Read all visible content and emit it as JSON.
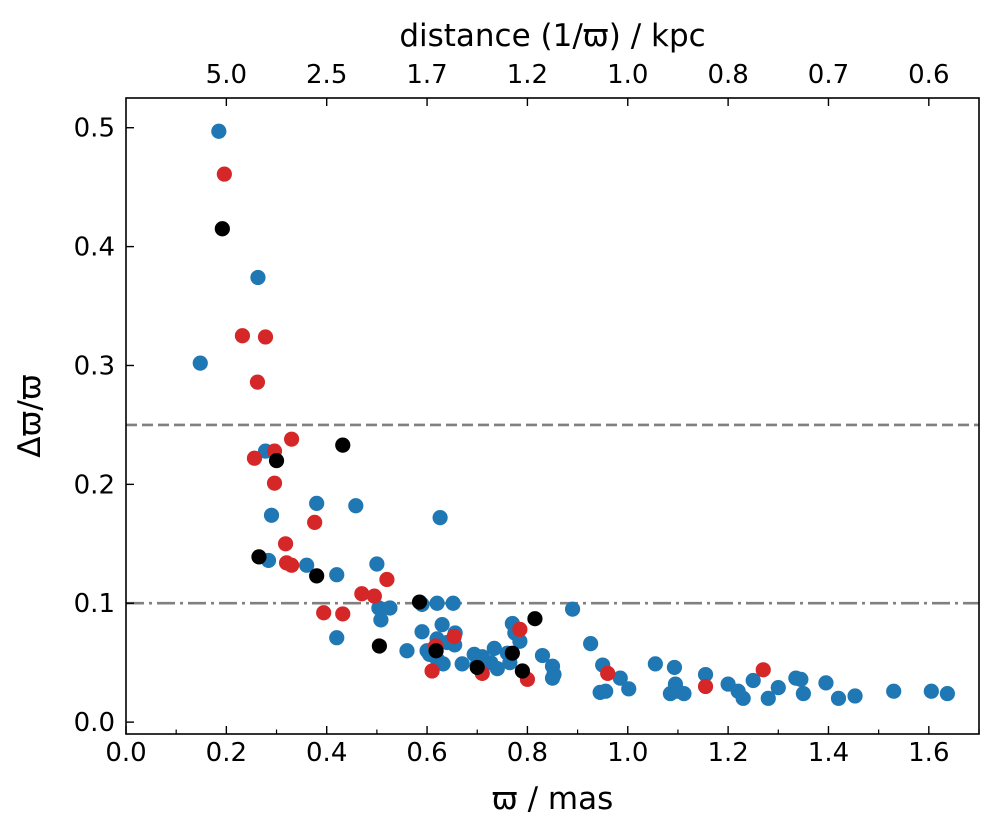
{
  "chart_data": {
    "type": "scatter",
    "title": "",
    "xlabel": "ϖ / mas",
    "ylabel": "Δϖ/ϖ",
    "top_xlabel": "distance (1/ϖ) / kpc",
    "xlim": [
      0.0,
      1.7
    ],
    "ylim": [
      -0.01,
      0.525
    ],
    "x_ticks": [
      0.0,
      0.2,
      0.4,
      0.6,
      0.8,
      1.0,
      1.2,
      1.4,
      1.6
    ],
    "x_tick_labels": [
      "0.0",
      "0.2",
      "0.4",
      "0.6",
      "0.8",
      "1.0",
      "1.2",
      "1.4",
      "1.6"
    ],
    "y_ticks": [
      0.0,
      0.1,
      0.2,
      0.3,
      0.4,
      0.5
    ],
    "y_tick_labels": [
      "0.0",
      "0.1",
      "0.2",
      "0.3",
      "0.4",
      "0.5"
    ],
    "top_ticks": [
      0.2,
      0.4,
      0.6,
      0.8,
      1.0,
      1.2,
      1.4,
      1.6
    ],
    "top_tick_labels": [
      "5.0",
      "2.5",
      "1.7",
      "1.2",
      "1.0",
      "0.8",
      "0.7",
      "0.6"
    ],
    "grid": false,
    "hlines": [
      {
        "y": 0.25,
        "style": "dashed",
        "color": "#808080"
      },
      {
        "y": 0.1,
        "style": "dashdot",
        "color": "#808080"
      }
    ],
    "series": [
      {
        "name": "blue",
        "color": "#1f77b4",
        "points": [
          [
            0.185,
            0.497
          ],
          [
            0.263,
            0.374
          ],
          [
            0.148,
            0.302
          ],
          [
            0.278,
            0.228
          ],
          [
            0.29,
            0.174
          ],
          [
            0.38,
            0.184
          ],
          [
            0.458,
            0.182
          ],
          [
            0.626,
            0.172
          ],
          [
            0.284,
            0.136
          ],
          [
            0.36,
            0.132
          ],
          [
            0.42,
            0.124
          ],
          [
            0.5,
            0.133
          ],
          [
            0.504,
            0.096
          ],
          [
            0.526,
            0.096
          ],
          [
            0.508,
            0.086
          ],
          [
            0.42,
            0.071
          ],
          [
            0.59,
            0.099
          ],
          [
            0.62,
            0.1
          ],
          [
            0.652,
            0.1
          ],
          [
            0.63,
            0.082
          ],
          [
            0.656,
            0.075
          ],
          [
            0.59,
            0.076
          ],
          [
            0.62,
            0.07
          ],
          [
            0.64,
            0.067
          ],
          [
            0.655,
            0.065
          ],
          [
            0.56,
            0.06
          ],
          [
            0.6,
            0.06
          ],
          [
            0.605,
            0.057
          ],
          [
            0.62,
            0.053
          ],
          [
            0.632,
            0.049
          ],
          [
            0.67,
            0.049
          ],
          [
            0.694,
            0.057
          ],
          [
            0.71,
            0.055
          ],
          [
            0.7,
            0.048
          ],
          [
            0.734,
            0.062
          ],
          [
            0.727,
            0.05
          ],
          [
            0.74,
            0.045
          ],
          [
            0.76,
            0.058
          ],
          [
            0.765,
            0.05
          ],
          [
            0.775,
            0.075
          ],
          [
            0.77,
            0.083
          ],
          [
            0.785,
            0.068
          ],
          [
            0.83,
            0.056
          ],
          [
            0.85,
            0.047
          ],
          [
            0.853,
            0.04
          ],
          [
            0.85,
            0.037
          ],
          [
            0.89,
            0.095
          ],
          [
            0.926,
            0.066
          ],
          [
            0.95,
            0.048
          ],
          [
            0.945,
            0.025
          ],
          [
            0.956,
            0.026
          ],
          [
            0.985,
            0.037
          ],
          [
            1.002,
            0.028
          ],
          [
            1.055,
            0.049
          ],
          [
            1.093,
            0.046
          ],
          [
            1.085,
            0.024
          ],
          [
            1.095,
            0.032
          ],
          [
            1.1,
            0.026
          ],
          [
            1.112,
            0.024
          ],
          [
            1.155,
            0.04
          ],
          [
            1.2,
            0.032
          ],
          [
            1.22,
            0.026
          ],
          [
            1.23,
            0.02
          ],
          [
            1.25,
            0.035
          ],
          [
            1.28,
            0.02
          ],
          [
            1.3,
            0.029
          ],
          [
            1.335,
            0.037
          ],
          [
            1.345,
            0.036
          ],
          [
            1.35,
            0.024
          ],
          [
            1.395,
            0.033
          ],
          [
            1.42,
            0.02
          ],
          [
            1.453,
            0.022
          ],
          [
            1.53,
            0.026
          ],
          [
            1.605,
            0.026
          ],
          [
            1.637,
            0.024
          ]
        ]
      },
      {
        "name": "red",
        "color": "#d62728",
        "points": [
          [
            0.196,
            0.461
          ],
          [
            0.232,
            0.325
          ],
          [
            0.278,
            0.324
          ],
          [
            0.262,
            0.286
          ],
          [
            0.33,
            0.238
          ],
          [
            0.256,
            0.222
          ],
          [
            0.296,
            0.228
          ],
          [
            0.296,
            0.201
          ],
          [
            0.318,
            0.15
          ],
          [
            0.376,
            0.168
          ],
          [
            0.32,
            0.134
          ],
          [
            0.33,
            0.132
          ],
          [
            0.394,
            0.092
          ],
          [
            0.432,
            0.091
          ],
          [
            0.47,
            0.108
          ],
          [
            0.495,
            0.106
          ],
          [
            0.52,
            0.12
          ],
          [
            0.617,
            0.064
          ],
          [
            0.61,
            0.043
          ],
          [
            0.654,
            0.072
          ],
          [
            0.71,
            0.041
          ],
          [
            0.785,
            0.078
          ],
          [
            0.8,
            0.036
          ],
          [
            0.96,
            0.041
          ],
          [
            1.155,
            0.03
          ],
          [
            1.27,
            0.044
          ]
        ]
      },
      {
        "name": "black",
        "color": "#000000",
        "points": [
          [
            0.192,
            0.415
          ],
          [
            0.3,
            0.22
          ],
          [
            0.432,
            0.233
          ],
          [
            0.265,
            0.139
          ],
          [
            0.38,
            0.123
          ],
          [
            0.585,
            0.101
          ],
          [
            0.505,
            0.064
          ],
          [
            0.618,
            0.06
          ],
          [
            0.7,
            0.046
          ],
          [
            0.77,
            0.058
          ],
          [
            0.79,
            0.043
          ],
          [
            0.815,
            0.087
          ]
        ]
      }
    ]
  }
}
